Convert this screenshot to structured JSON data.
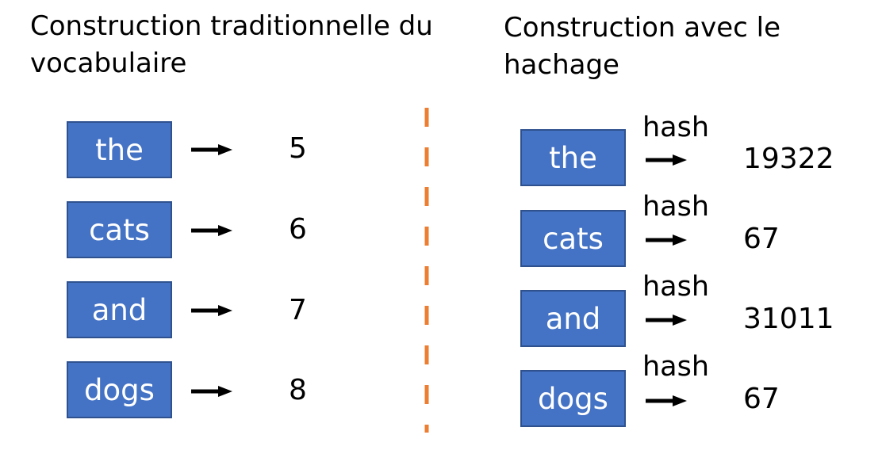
{
  "left": {
    "title": "Construction traditionnelle du vocabulaire",
    "rows": [
      {
        "word": "the",
        "value": "5"
      },
      {
        "word": "cats",
        "value": "6"
      },
      {
        "word": "and",
        "value": "7"
      },
      {
        "word": "dogs",
        "value": "8"
      }
    ]
  },
  "right": {
    "title": "Construction avec le hachage",
    "rows": [
      {
        "word": "the",
        "hash_label": "hash",
        "value": "19322"
      },
      {
        "word": "cats",
        "hash_label": "hash",
        "value": "67"
      },
      {
        "word": "and",
        "hash_label": "hash",
        "value": "31011"
      },
      {
        "word": "dogs",
        "hash_label": "hash",
        "value": "67"
      }
    ]
  },
  "colors": {
    "box_fill": "#4472c4",
    "box_border": "#2f528f",
    "divider": "#ed7d31",
    "text": "#000000"
  }
}
